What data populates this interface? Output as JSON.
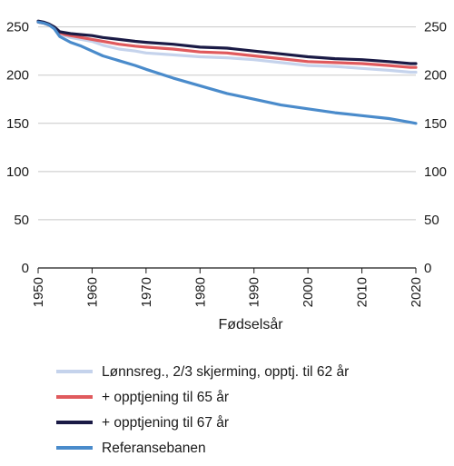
{
  "chart_data": {
    "type": "line",
    "xlabel": "Fødselsår",
    "ylabel": "",
    "xlim": [
      1950,
      2020
    ],
    "ylim": [
      0,
      260
    ],
    "x_ticks": [
      "1950",
      "1960",
      "1970",
      "1980",
      "1990",
      "2000",
      "2010",
      "2020"
    ],
    "y_ticks": [
      "0",
      "50",
      "100",
      "150",
      "200",
      "250"
    ],
    "grid": "horizontal",
    "legend_position": "bottom",
    "x": [
      1950,
      1951,
      1952,
      1953,
      1954,
      1955,
      1956,
      1958,
      1960,
      1962,
      1965,
      1968,
      1970,
      1975,
      1980,
      1985,
      1990,
      1995,
      2000,
      2005,
      2010,
      2015,
      2019,
      2020
    ],
    "series": [
      {
        "name": "Lønnsreg., 2/3 skjerming, opptj. til 62 år",
        "color": "#c5d3ec",
        "values": [
          255,
          254,
          252,
          249,
          243,
          241,
          239,
          237,
          235,
          231,
          227,
          225,
          223,
          221,
          219,
          218,
          216,
          213,
          210,
          209,
          207,
          205,
          203,
          203
        ]
      },
      {
        "name": "+ opptjening til 65 år",
        "color": "#e05a5d",
        "values": [
          255,
          254,
          252,
          249,
          244,
          242,
          241,
          239,
          237,
          235,
          232,
          230,
          229,
          227,
          224,
          223,
          220,
          217,
          214,
          213,
          212,
          210,
          208,
          208
        ]
      },
      {
        "name": "+ opptjening til 67 år",
        "color": "#1a1a45",
        "values": [
          256,
          255,
          253,
          250,
          245,
          244,
          243,
          242,
          241,
          239,
          237,
          235,
          234,
          232,
          229,
          228,
          225,
          222,
          219,
          217,
          216,
          214,
          212,
          212
        ]
      },
      {
        "name": "Referansebanen",
        "color": "#4a8bcb",
        "values": [
          255,
          254,
          252,
          248,
          240,
          237,
          234,
          230,
          225,
          220,
          215,
          210,
          206,
          197,
          189,
          181,
          175,
          169,
          165,
          161,
          158,
          155,
          151,
          150
        ]
      }
    ]
  }
}
